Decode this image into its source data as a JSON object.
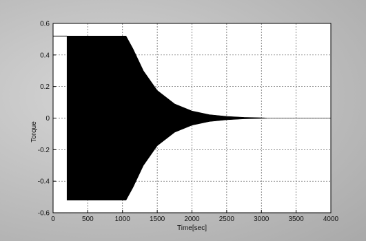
{
  "chart_data": {
    "type": "line",
    "title": "",
    "xlabel": "Time[sec]",
    "ylabel": "Torque",
    "xlim": [
      0,
      4000
    ],
    "ylim": [
      -0.6,
      0.6
    ],
    "grid": true,
    "x_ticks": [
      "0",
      "500",
      "1000",
      "1500",
      "2000",
      "2500",
      "3000",
      "3500",
      "4000"
    ],
    "y_ticks": [
      "0.6",
      "0.4",
      "0.2",
      "0",
      "-0.2",
      "-0.4",
      "-0.6"
    ],
    "series": [
      {
        "color": "#000000",
        "render": "oscillation-envelope",
        "upper_envelope": {
          "x": [
            0,
            200,
            201,
            1050,
            1150,
            1300,
            1500,
            1750,
            2000,
            2250,
            2500,
            2750,
            3000,
            3100
          ],
          "y": [
            0.52,
            0.52,
            0.52,
            0.52,
            0.44,
            0.3,
            0.175,
            0.09,
            0.045,
            0.022,
            0.011,
            0.005,
            0.002,
            0.0
          ]
        },
        "lower_envelope": {
          "x": [
            200,
            1050,
            1150,
            1300,
            1500,
            1750,
            2000,
            2250,
            2500,
            2750,
            3000,
            3100
          ],
          "y": [
            -0.52,
            -0.52,
            -0.44,
            -0.3,
            -0.175,
            -0.09,
            -0.045,
            -0.022,
            -0.011,
            -0.005,
            -0.002,
            0.0
          ]
        }
      }
    ]
  }
}
